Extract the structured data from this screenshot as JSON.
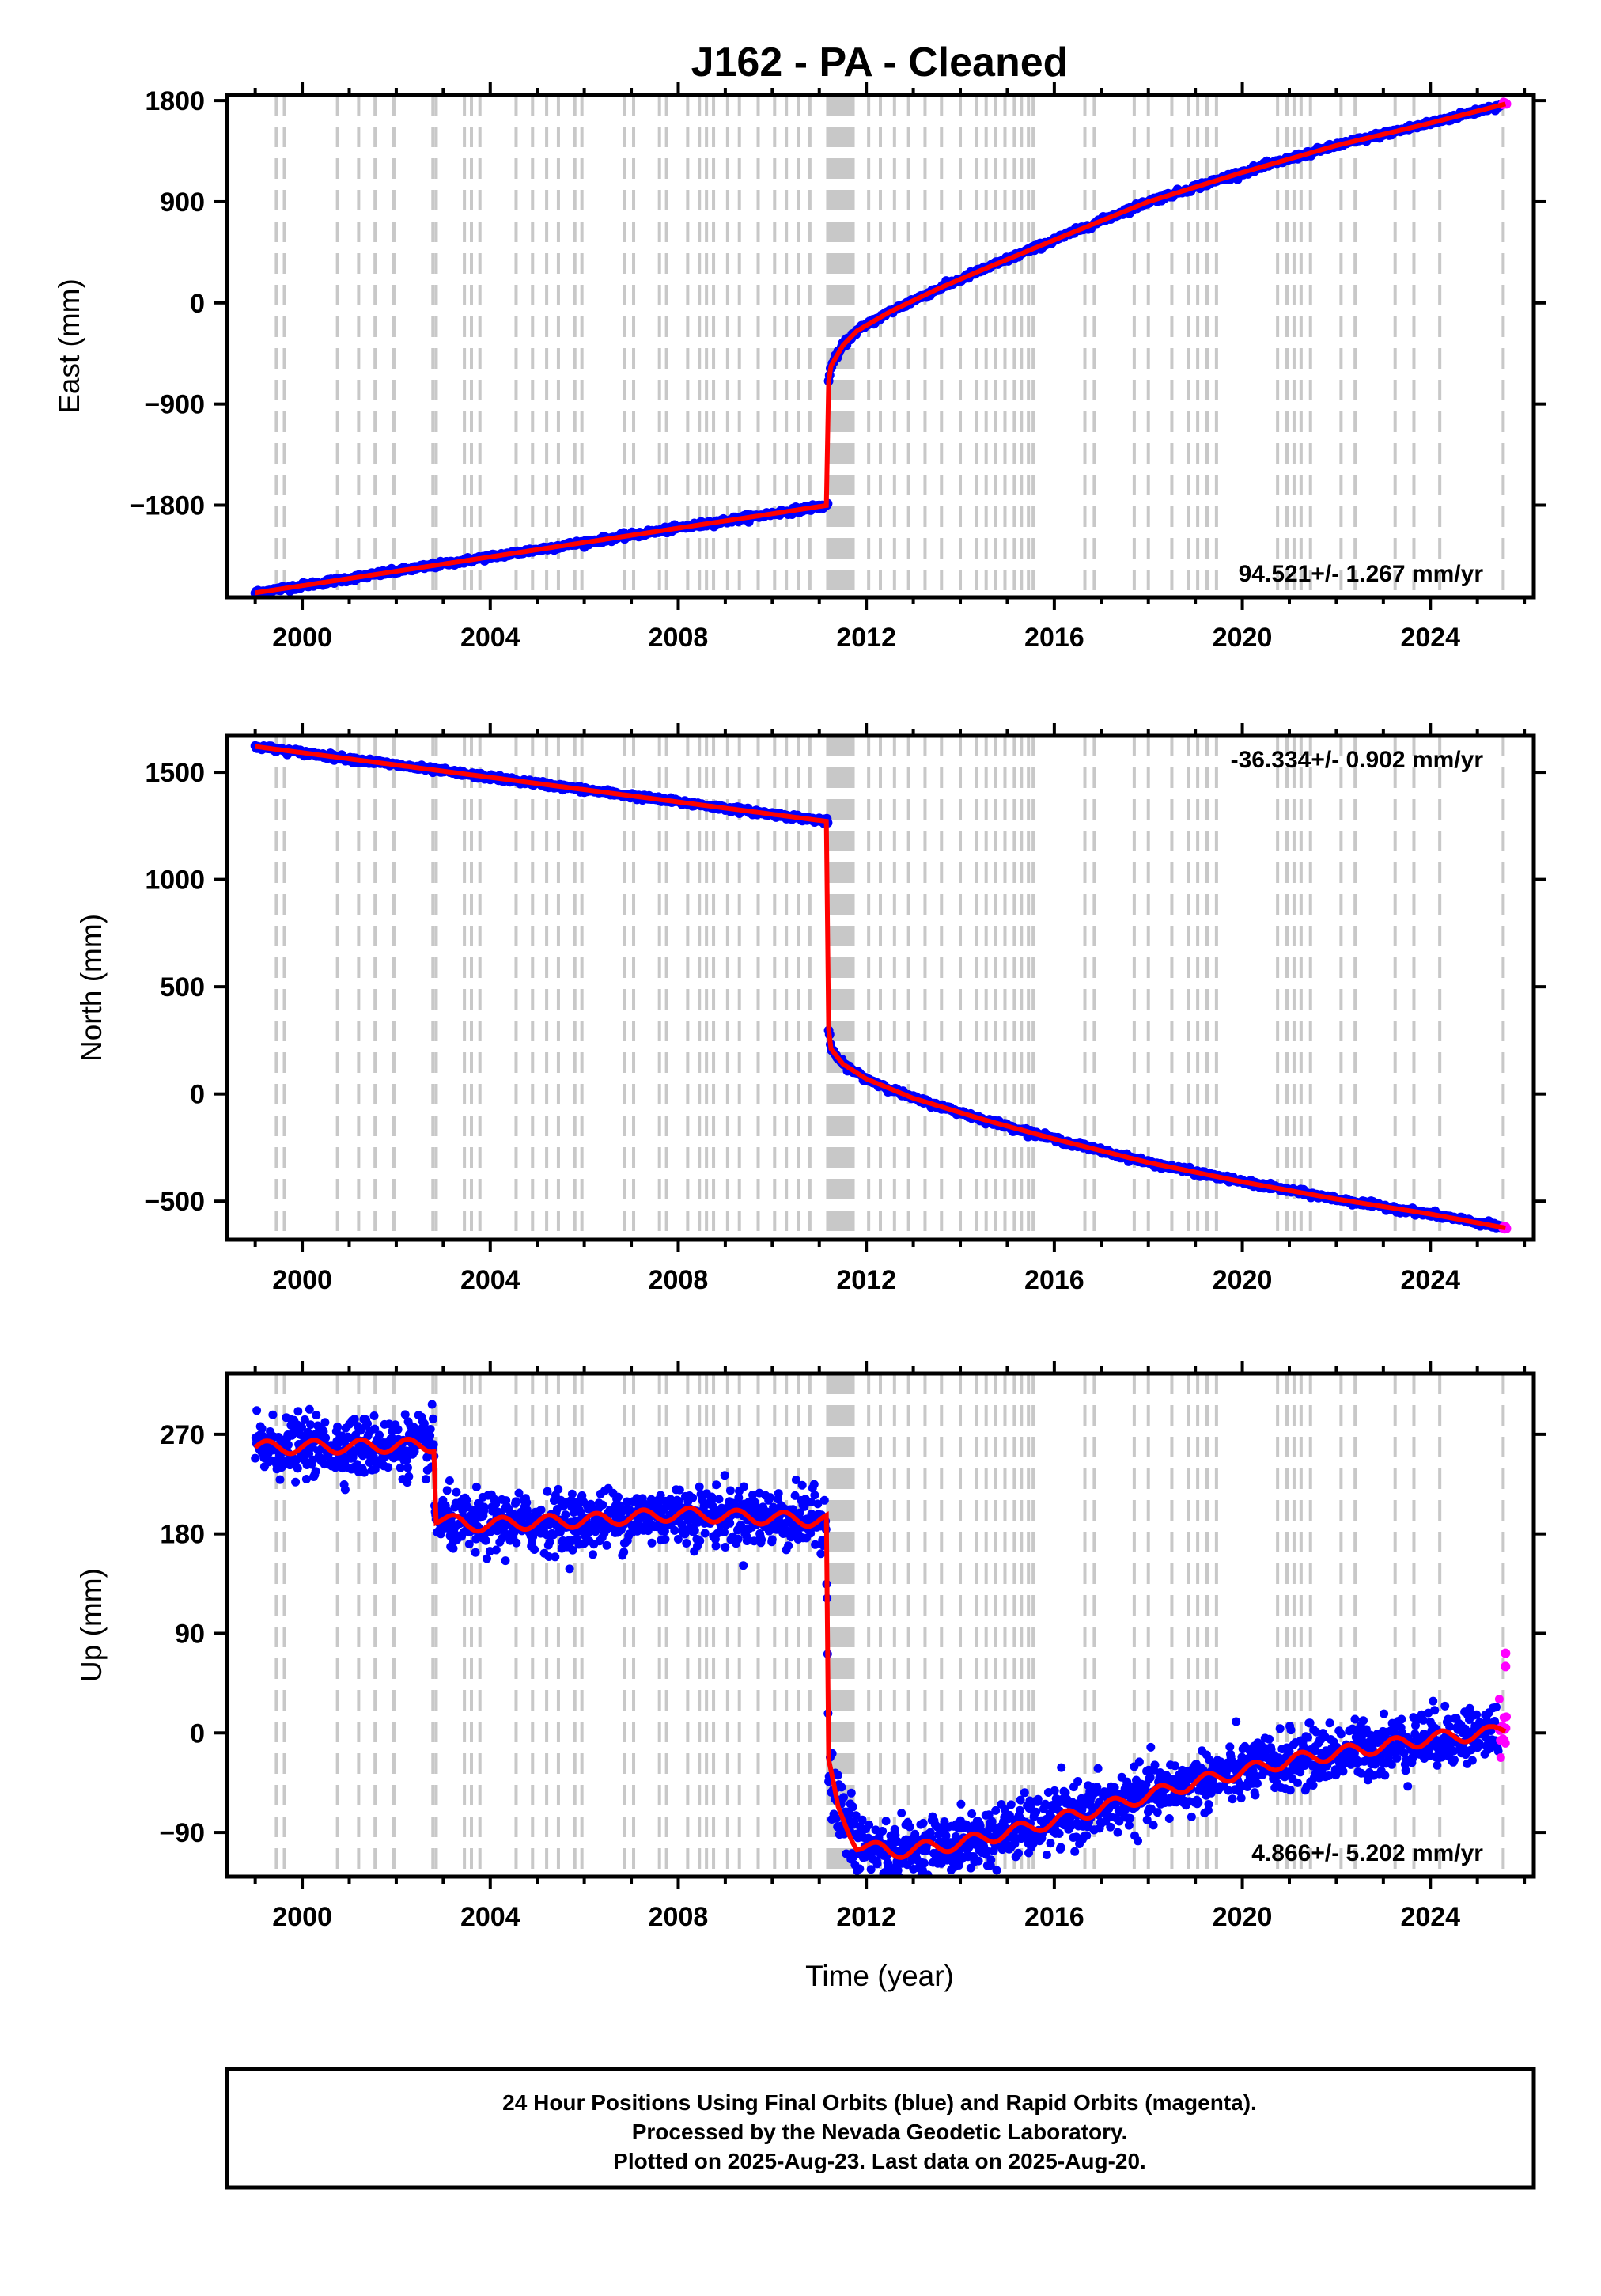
{
  "title": "J162  - PA - Cleaned",
  "xlabel": "Time (year)",
  "footer": {
    "line1": "24 Hour Positions Using Final Orbits (blue) and Rapid Orbits (magenta).",
    "line2": "Processed by the Nevada Geodetic Laboratory.",
    "line3": "Plotted on 2025-Aug-23. Last data on 2025-Aug-20."
  },
  "colors": {
    "final_orbits": "#0000ff",
    "rapid_orbits": "#ff00ff",
    "model": "#ff0000",
    "equipment_change_lines": "#c8c8c8"
  },
  "chart_data": [
    {
      "type": "scatter",
      "component": "east",
      "ylabel": "East (mm)",
      "rate_label": "94.521+/- 1.267 mm/yr",
      "xlim": [
        1998.4,
        2026.2
      ],
      "ylim": [
        -2620,
        1850
      ],
      "yticks": [
        1800,
        900,
        0,
        -900,
        -1800
      ],
      "ytick_labels": [
        "1800",
        "900",
        "0",
        "−900",
        "−1800"
      ],
      "xticks": [
        2000,
        2004,
        2008,
        2012,
        2016,
        2020,
        2024
      ],
      "xtick_labels": [
        "2000",
        "2004",
        "2008",
        "2012",
        "2016",
        "2020",
        "2024"
      ],
      "model_breakpoints": [
        [
          1999.0,
          -2580
        ],
        [
          2011.19,
          -1800
        ],
        [
          2011.2,
          -700
        ],
        [
          2011.25,
          -560
        ],
        [
          2011.5,
          -380
        ],
        [
          2011.8,
          -250
        ],
        [
          2012.5,
          -80
        ],
        [
          2013.5,
          120
        ],
        [
          2014.5,
          300
        ],
        [
          2016.0,
          560
        ],
        [
          2018.0,
          900
        ],
        [
          2020.0,
          1160
        ],
        [
          2022.0,
          1400
        ],
        [
          2024.0,
          1600
        ],
        [
          2025.6,
          1770
        ]
      ],
      "noise": 12,
      "rapid_from": 2025.52
    },
    {
      "type": "scatter",
      "component": "north",
      "ylabel": "North (mm)",
      "rate_label": "-36.334+/- 0.902 mm/yr",
      "xlim": [
        1998.4,
        2026.2
      ],
      "ylim": [
        -680,
        1670
      ],
      "yticks": [
        1500,
        1000,
        500,
        0,
        -500
      ],
      "ytick_labels": [
        "1500",
        "1000",
        "500",
        "0",
        "−500"
      ],
      "xticks": [
        2000,
        2004,
        2008,
        2012,
        2016,
        2020,
        2024
      ],
      "xtick_labels": [
        "2000",
        "2004",
        "2008",
        "2012",
        "2016",
        "2020",
        "2024"
      ],
      "model_breakpoints": [
        [
          1999.0,
          1620
        ],
        [
          2011.19,
          1270
        ],
        [
          2011.2,
          300
        ],
        [
          2011.25,
          210
        ],
        [
          2011.5,
          140
        ],
        [
          2012.0,
          70
        ],
        [
          2013.0,
          -20
        ],
        [
          2014.5,
          -120
        ],
        [
          2016.0,
          -210
        ],
        [
          2018.0,
          -320
        ],
        [
          2020.0,
          -410
        ],
        [
          2022.0,
          -490
        ],
        [
          2024.0,
          -560
        ],
        [
          2025.6,
          -625
        ]
      ],
      "noise": 6,
      "rapid_from": 2025.52
    },
    {
      "type": "scatter",
      "component": "up",
      "ylabel": "Up (mm)",
      "rate_label": "4.866+/- 5.202 mm/yr",
      "xlim": [
        1998.4,
        2026.2
      ],
      "ylim": [
        -130,
        325
      ],
      "yticks": [
        270,
        180,
        90,
        0,
        -90
      ],
      "ytick_labels": [
        "270",
        "180",
        "90",
        "0",
        "−90"
      ],
      "xticks": [
        2000,
        2004,
        2008,
        2012,
        2016,
        2020,
        2024
      ],
      "xtick_labels": [
        "2000",
        "2004",
        "2008",
        "2012",
        "2016",
        "2020",
        "2024"
      ],
      "model_breakpoints": [
        [
          1999.0,
          258
        ],
        [
          2002.8,
          260
        ],
        [
          2002.82,
          195
        ],
        [
          2003.5,
          188
        ],
        [
          2006.0,
          192
        ],
        [
          2008.0,
          198
        ],
        [
          2011.15,
          192
        ],
        [
          2011.2,
          -30
        ],
        [
          2011.4,
          -70
        ],
        [
          2011.8,
          -100
        ],
        [
          2012.5,
          -108
        ],
        [
          2014.0,
          -100
        ],
        [
          2015.5,
          -85
        ],
        [
          2017.0,
          -68
        ],
        [
          2019.0,
          -45
        ],
        [
          2021.0,
          -25
        ],
        [
          2023.0,
          -12
        ],
        [
          2024.0,
          -5
        ],
        [
          2025.3,
          0
        ],
        [
          2025.6,
          5
        ]
      ],
      "noise": 13,
      "rapid_from": 2025.45,
      "rapid_outliers": [
        [
          2025.6,
          72
        ],
        [
          2025.6,
          60
        ]
      ]
    }
  ],
  "equipment_change_years": [
    1999.45,
    1999.62,
    2000.75,
    2001.2,
    2001.55,
    2001.95,
    2002.78,
    2002.85,
    2003.45,
    2003.6,
    2003.78,
    2004.55,
    2004.9,
    2005.2,
    2005.45,
    2005.8,
    2005.95,
    2006.85,
    2007.05,
    2007.6,
    2007.75,
    2008.2,
    2008.45,
    2008.6,
    2008.75,
    2009.05,
    2009.3,
    2009.7,
    2010.05,
    2010.3,
    2010.55,
    2010.8,
    2011.18,
    2011.24,
    2011.3,
    2011.36,
    2011.42,
    2011.48,
    2011.54,
    2011.6,
    2011.66,
    2011.72,
    2012.05,
    2012.3,
    2012.6,
    2012.9,
    2013.25,
    2013.6,
    2014.0,
    2014.35,
    2014.55,
    2014.75,
    2014.95,
    2015.15,
    2015.3,
    2015.45,
    2015.55,
    2016.65,
    2016.85,
    2017.7,
    2018.0,
    2018.5,
    2018.85,
    2019.05,
    2019.25,
    2019.45,
    2020.75,
    2020.95,
    2021.1,
    2021.25,
    2021.45,
    2022.1,
    2022.4,
    2023.25,
    2023.65,
    2024.2,
    2025.55
  ]
}
